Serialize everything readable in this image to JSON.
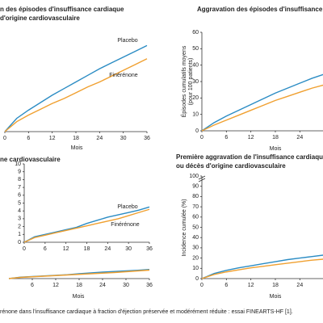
{
  "chart_data": [
    {
      "type": "line",
      "title": [
        "n des épisodes d'insuffisance cardiaque",
        "d'origine cardiovasculaire"
      ],
      "x_label": "Mois",
      "x": [
        0,
        3,
        6,
        9,
        12,
        15,
        18,
        21,
        24,
        27,
        30,
        33,
        36
      ],
      "xlim": [
        0,
        36
      ],
      "xticks": [
        0,
        6,
        12,
        18,
        24,
        30,
        36
      ],
      "ylim": [
        0,
        60
      ],
      "series": [
        {
          "name": "Placebo",
          "color": "#2b8cc4",
          "values": [
            0,
            8,
            13,
            17.5,
            22,
            26,
            30,
            34,
            38,
            41.5,
            45,
            48.5,
            52
          ]
        },
        {
          "name": "Finérénone",
          "color": "#f0a030",
          "values": [
            0,
            6,
            10,
            13.5,
            17,
            20,
            23.5,
            27,
            30,
            33.5,
            37,
            40.5,
            44
          ]
        }
      ]
    },
    {
      "type": "line",
      "title": [
        "Aggravation des épisodes d'insuffisance cardiaque"
      ],
      "x_label": "Mois",
      "y_label": [
        "Épisodes cumulatifs moyens",
        "(pour 100 patients)"
      ],
      "x": [
        0,
        3,
        6,
        9,
        12,
        15,
        18,
        21,
        24,
        27,
        30
      ],
      "xlim": [
        0,
        36
      ],
      "xticks": [
        0,
        6,
        12,
        18,
        24
      ],
      "ylim": [
        0,
        60
      ],
      "yticks": [
        0,
        10,
        20,
        30,
        40,
        50,
        60
      ],
      "series": [
        {
          "name": "Placebo",
          "color": "#2b8cc4",
          "values": [
            0,
            5,
            9,
            12.5,
            16,
            19.5,
            23,
            26,
            29,
            32,
            34.5
          ]
        },
        {
          "name": "Finérénone",
          "color": "#f0a030",
          "values": [
            0,
            3.5,
            6.5,
            9.5,
            12.5,
            15.5,
            18.5,
            21,
            23.5,
            26,
            28
          ]
        }
      ]
    },
    {
      "type": "line",
      "title": [
        "ne cardiovasculaire"
      ],
      "x_label": "Mois",
      "x": [
        0,
        3,
        6,
        9,
        12,
        15,
        18,
        21,
        24,
        27,
        30,
        33,
        36
      ],
      "xlim": [
        0,
        36
      ],
      "xticks": [
        6,
        12,
        18,
        24,
        30,
        36
      ],
      "ylim": [
        0,
        50
      ],
      "series": [
        {
          "name": "Placebo",
          "color": "#2b8cc4",
          "values": [
            0,
            0.7,
            1.0,
            1.3,
            1.6,
            1.9,
            2.4,
            2.8,
            3.2,
            3.5,
            3.8,
            4.1,
            4.5
          ]
        },
        {
          "name": "Finérénone",
          "color": "#f0a030",
          "values": [
            0,
            0.6,
            0.9,
            1.2,
            1.5,
            1.8,
            2.1,
            2.4,
            2.7,
            3.0,
            3.4,
            3.8,
            4.2
          ]
        }
      ],
      "inset": {
        "xlim": [
          0,
          36
        ],
        "xticks": [
          0,
          6,
          12,
          18,
          24,
          30,
          36
        ],
        "ylim": [
          0,
          10
        ],
        "yticks": [
          0,
          1,
          2,
          3,
          4,
          5,
          6,
          7,
          8,
          9,
          10
        ]
      }
    },
    {
      "type": "line",
      "title": [
        "Première aggravation de l'insuffisance cardiaque",
        "ou décès d'origine cardiovasculaire"
      ],
      "x_label": "Mois",
      "y_label": [
        "Incidence cumulée (%)"
      ],
      "x": [
        0,
        3,
        6,
        9,
        12,
        15,
        18,
        21,
        24,
        27,
        30
      ],
      "xlim": [
        0,
        36
      ],
      "xticks": [
        0,
        6,
        12,
        18,
        24
      ],
      "ylim": [
        0,
        100
      ],
      "yticks": [
        0,
        10,
        20,
        30,
        40,
        50,
        60,
        70,
        80,
        90,
        100
      ],
      "series": [
        {
          "name": "Placebo",
          "color": "#2b8cc4",
          "values": [
            0,
            5,
            8,
            10.5,
            12.5,
            14.5,
            16.5,
            18.5,
            20,
            21.5,
            23
          ]
        },
        {
          "name": "Finérénone",
          "color": "#f0a030",
          "values": [
            0,
            4,
            6.5,
            8.5,
            10.5,
            12,
            13.5,
            15,
            16.5,
            18,
            19
          ]
        }
      ]
    }
  ],
  "caption": "rénone dans l'insuffisance cardiaque à fraction d'éjection préservée et modérément réduite : essai FINEARTS-HF [1]."
}
